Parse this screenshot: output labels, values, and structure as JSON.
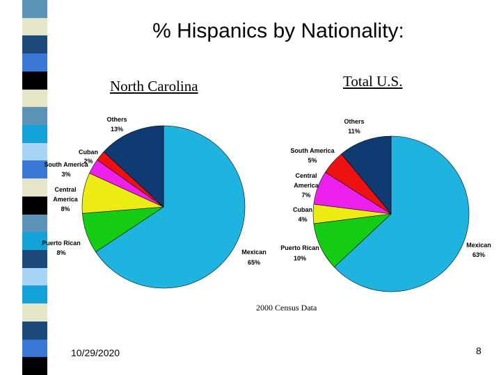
{
  "slide": {
    "title": "% Hispanics by Nationality:",
    "source": "2000 Census Data",
    "date": "10/29/2020",
    "page": "8"
  },
  "colors": {
    "Mexican": "#1fb3e0",
    "Puerto Rican": "#14cc14",
    "Central America": "#ecec14",
    "Cuban": "#ecec14",
    "South America": "#ee20ee",
    "Cuban NC": "#ee1111",
    "South America US": "#ee1111",
    "Central America US": "#ee20ee",
    "Others": "#0f3a72"
  },
  "chart_data": [
    {
      "type": "pie",
      "title": "North Carolina",
      "slices": [
        {
          "label": "Mexican",
          "value": 65,
          "value_label": "65%",
          "color": "#1fb3e0"
        },
        {
          "label": "Puerto Rican",
          "value": 8,
          "value_label": "8%",
          "color": "#14cc14"
        },
        {
          "label": "Central America",
          "value": 8,
          "value_label": "8%",
          "color": "#ecec14"
        },
        {
          "label": "South America",
          "value": 3,
          "value_label": "3%",
          "color": "#ee20ee"
        },
        {
          "label": "Cuban",
          "value": 2,
          "value_label": "2%",
          "color": "#ee1111"
        },
        {
          "label": "Others",
          "value": 13,
          "value_label": "13%",
          "color": "#0f3a72"
        }
      ]
    },
    {
      "type": "pie",
      "title": "Total  U.S.",
      "slices": [
        {
          "label": "Mexican",
          "value": 63,
          "value_label": "63%",
          "color": "#1fb3e0"
        },
        {
          "label": "Puerto Rican",
          "value": 10,
          "value_label": "10%",
          "color": "#14cc14"
        },
        {
          "label": "Cuban",
          "value": 4,
          "value_label": "4%",
          "color": "#ecec14"
        },
        {
          "label": "Central America",
          "value": 7,
          "value_label": "7%",
          "color": "#ee20ee"
        },
        {
          "label": "South America",
          "value": 5,
          "value_label": "5%",
          "color": "#ee1111"
        },
        {
          "label": "Others",
          "value": 11,
          "value_label": "11%",
          "color": "#0f3a72"
        }
      ]
    }
  ]
}
